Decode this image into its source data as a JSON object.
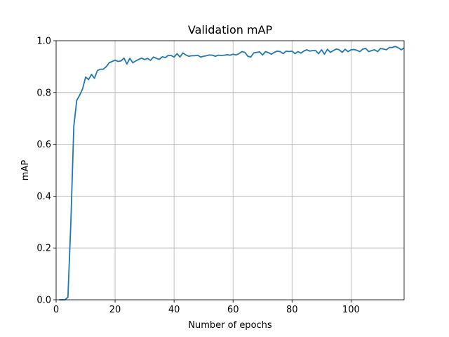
{
  "chart_data": {
    "type": "line",
    "title": "Validation mAP",
    "xlabel": "Number of epochs",
    "ylabel": "mAP",
    "xlim": [
      0,
      118
    ],
    "ylim": [
      0,
      1.0
    ],
    "xticks": [
      0,
      20,
      40,
      60,
      80,
      100
    ],
    "xtick_labels": [
      "0",
      "20",
      "40",
      "60",
      "80",
      "100"
    ],
    "yticks": [
      0.0,
      0.2,
      0.4,
      0.6,
      0.8,
      1.0
    ],
    "ytick_labels": [
      "0.0",
      "0.2",
      "0.4",
      "0.6",
      "0.8",
      "1.0"
    ],
    "grid": true,
    "series": [
      {
        "color": "#1f77b4",
        "x": [
          1,
          2,
          3,
          4,
          5,
          6,
          7,
          8,
          9,
          10,
          11,
          12,
          13,
          14,
          15,
          16,
          17,
          18,
          19,
          20,
          21,
          22,
          23,
          24,
          25,
          26,
          27,
          28,
          29,
          30,
          31,
          32,
          33,
          34,
          35,
          36,
          37,
          38,
          39,
          40,
          41,
          42,
          43,
          44,
          45,
          46,
          47,
          48,
          49,
          50,
          51,
          52,
          53,
          54,
          55,
          56,
          57,
          58,
          59,
          60,
          61,
          62,
          63,
          64,
          65,
          66,
          67,
          68,
          69,
          70,
          71,
          72,
          73,
          74,
          75,
          76,
          77,
          78,
          79,
          80,
          81,
          82,
          83,
          84,
          85,
          86,
          87,
          88,
          89,
          90,
          91,
          92,
          93,
          94,
          95,
          96,
          97,
          98,
          99,
          100,
          101,
          102,
          103,
          104,
          105,
          106,
          107,
          108,
          109,
          110,
          111,
          112,
          113,
          114,
          115,
          116,
          117,
          118
        ],
        "values": [
          0.0,
          0.0,
          0.0,
          0.01,
          0.3,
          0.67,
          0.77,
          0.79,
          0.815,
          0.86,
          0.85,
          0.87,
          0.855,
          0.885,
          0.89,
          0.89,
          0.9,
          0.915,
          0.92,
          0.925,
          0.92,
          0.922,
          0.933,
          0.91,
          0.932,
          0.915,
          0.922,
          0.928,
          0.933,
          0.927,
          0.932,
          0.924,
          0.937,
          0.932,
          0.928,
          0.938,
          0.935,
          0.943,
          0.943,
          0.937,
          0.95,
          0.937,
          0.953,
          0.945,
          0.94,
          0.942,
          0.942,
          0.944,
          0.937,
          0.94,
          0.942,
          0.945,
          0.944,
          0.94,
          0.944,
          0.943,
          0.944,
          0.946,
          0.944,
          0.948,
          0.945,
          0.95,
          0.958,
          0.955,
          0.94,
          0.937,
          0.953,
          0.955,
          0.957,
          0.945,
          0.958,
          0.954,
          0.948,
          0.955,
          0.96,
          0.958,
          0.95,
          0.96,
          0.958,
          0.96,
          0.95,
          0.958,
          0.952,
          0.96,
          0.965,
          0.96,
          0.962,
          0.962,
          0.95,
          0.965,
          0.948,
          0.967,
          0.955,
          0.962,
          0.968,
          0.965,
          0.955,
          0.967,
          0.958,
          0.965,
          0.966,
          0.963,
          0.958,
          0.968,
          0.97,
          0.958,
          0.962,
          0.965,
          0.958,
          0.97,
          0.968,
          0.965,
          0.974,
          0.974,
          0.978,
          0.973,
          0.965,
          0.972
        ]
      }
    ]
  }
}
